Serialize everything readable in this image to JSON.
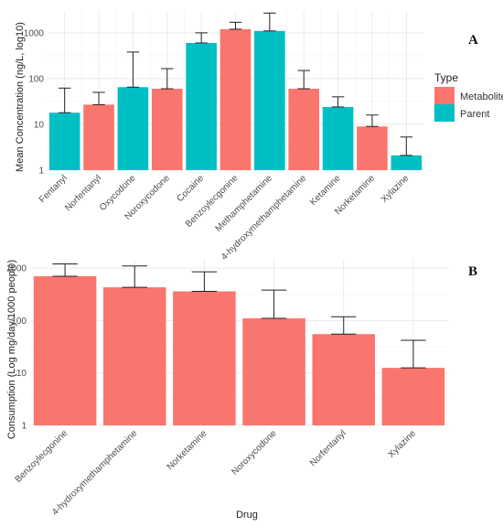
{
  "colors": {
    "Metabolite": "#f8766d",
    "Parent": "#00bfc4"
  },
  "chart_data": [
    {
      "type": "bar",
      "panel": "A",
      "ylabel": "Mean Concentration (ng/L, log10)",
      "yscale": "log10",
      "ylim": [
        1,
        3000
      ],
      "yticks": [
        1,
        10,
        100,
        1000
      ],
      "ytick_labels": [
        "1",
        "10",
        "100",
        "1000"
      ],
      "grid": true,
      "legend": {
        "title": "Type",
        "placement": "right",
        "entries": [
          "Metabolite",
          "Parent"
        ]
      },
      "categories": [
        "Fentanyl",
        "Norfentanyl",
        "Oxycodone",
        "Noroxycodone",
        "Cocaine",
        "Benzoylecgonine",
        "Methamphetamine",
        "4-hydroxymethamphetamine",
        "Ketamine",
        "Norketamine",
        "Xylazine"
      ],
      "types": [
        "Parent",
        "Metabolite",
        "Parent",
        "Metabolite",
        "Parent",
        "Metabolite",
        "Parent",
        "Metabolite",
        "Parent",
        "Metabolite",
        "Parent"
      ],
      "values": [
        18,
        27,
        65,
        60,
        600,
        1200,
        1100,
        60,
        24,
        9,
        2.1
      ],
      "error_upper": [
        62,
        50,
        380,
        165,
        1000,
        1700,
        2700,
        150,
        40,
        16,
        5.3
      ]
    },
    {
      "type": "bar",
      "panel": "B",
      "xlabel": "Drug",
      "ylabel": "Consumption (Log mg/day/1000 people)",
      "yscale": "log10",
      "ylim": [
        1,
        1500
      ],
      "yticks": [
        1,
        10,
        100,
        1000
      ],
      "ytick_labels": [
        "1",
        "10",
        "100",
        "1000"
      ],
      "grid": true,
      "categories": [
        "Benzoylecgonine",
        "4-hydroxymethamphetamine",
        "Norketamine",
        "Noroxycodone",
        "Norfentanyl",
        "Xylazine"
      ],
      "types": [
        "Metabolite",
        "Metabolite",
        "Metabolite",
        "Metabolite",
        "Metabolite",
        "Metabolite"
      ],
      "values": [
        700,
        430,
        360,
        110,
        55,
        12.5
      ],
      "error_lower": [
        700,
        430,
        360,
        110,
        55,
        12.5
      ],
      "error_upper": [
        1200,
        1100,
        850,
        380,
        118,
        42
      ]
    }
  ]
}
